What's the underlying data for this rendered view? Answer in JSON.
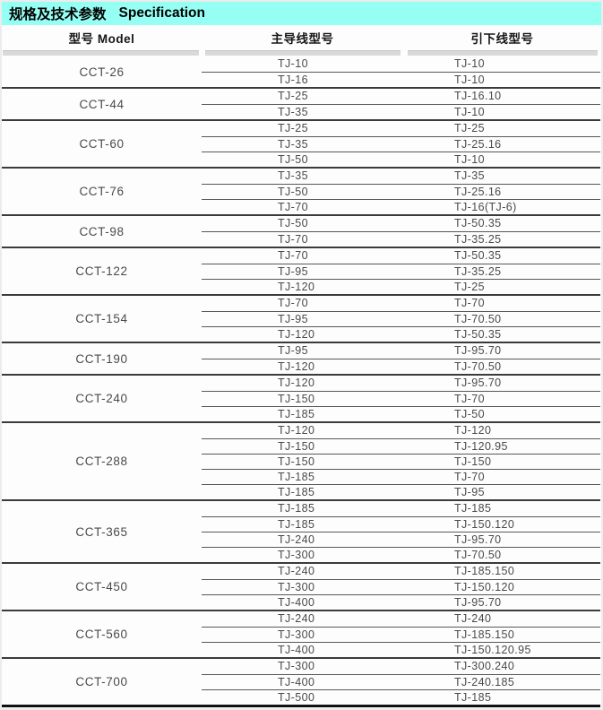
{
  "title": {
    "text_cn": "规格及技术参数",
    "text_en": "Specification",
    "bg_color": "#96fff4"
  },
  "colors": {
    "title_bg": "#96fff4",
    "band_gray": "#d9d9d9",
    "text_gray": "#4a4a4a",
    "line_dark": "#3b3b3b"
  },
  "table": {
    "columns": [
      {
        "key": "model",
        "label": "型号 Model"
      },
      {
        "key": "main",
        "label": "主导线型号"
      },
      {
        "key": "down",
        "label": "引下线型号"
      }
    ],
    "groups": [
      {
        "model": "CCT-26",
        "rows": [
          [
            "TJ-10",
            "TJ-10"
          ],
          [
            "TJ-16",
            "TJ-10"
          ]
        ]
      },
      {
        "model": "CCT-44",
        "rows": [
          [
            "TJ-25",
            "TJ-16.10"
          ],
          [
            "TJ-35",
            "TJ-10"
          ]
        ]
      },
      {
        "model": "CCT-60",
        "rows": [
          [
            "TJ-25",
            "TJ-25"
          ],
          [
            "TJ-35",
            "TJ-25.16"
          ],
          [
            "TJ-50",
            "TJ-10"
          ]
        ]
      },
      {
        "model": "CCT-76",
        "rows": [
          [
            "TJ-35",
            "TJ-35"
          ],
          [
            "TJ-50",
            "TJ-25.16"
          ],
          [
            "TJ-70",
            "TJ-16(TJ-6)"
          ]
        ]
      },
      {
        "model": "CCT-98",
        "rows": [
          [
            "TJ-50",
            "TJ-50.35"
          ],
          [
            "TJ-70",
            "TJ-35.25"
          ]
        ]
      },
      {
        "model": "CCT-122",
        "rows": [
          [
            "TJ-70",
            "TJ-50.35"
          ],
          [
            "TJ-95",
            "TJ-35.25"
          ],
          [
            "TJ-120",
            "TJ-25"
          ]
        ]
      },
      {
        "model": "CCT-154",
        "rows": [
          [
            "TJ-70",
            "TJ-70"
          ],
          [
            "TJ-95",
            "TJ-70.50"
          ],
          [
            "TJ-120",
            "TJ-50.35"
          ]
        ]
      },
      {
        "model": "CCT-190",
        "rows": [
          [
            "TJ-95",
            "TJ-95.70"
          ],
          [
            "TJ-120",
            "TJ-70.50"
          ]
        ]
      },
      {
        "model": "CCT-240",
        "rows": [
          [
            "TJ-120",
            "TJ-95.70"
          ],
          [
            "TJ-150",
            "TJ-70"
          ],
          [
            "TJ-185",
            "TJ-50"
          ]
        ]
      },
      {
        "model": "CCT-288",
        "rows": [
          [
            "TJ-120",
            "TJ-120"
          ],
          [
            "TJ-150",
            "TJ-120.95"
          ],
          [
            "TJ-150",
            "TJ-150"
          ],
          [
            "TJ-185",
            "TJ-70"
          ],
          [
            "TJ-185",
            "TJ-95"
          ]
        ]
      },
      {
        "model": "CCT-365",
        "rows": [
          [
            "TJ-185",
            "TJ-185"
          ],
          [
            "TJ-185",
            "TJ-150.120"
          ],
          [
            "TJ-240",
            "TJ-95.70"
          ],
          [
            "TJ-300",
            "TJ-70.50"
          ]
        ]
      },
      {
        "model": "CCT-450",
        "rows": [
          [
            "TJ-240",
            "TJ-185.150"
          ],
          [
            "TJ-300",
            "TJ-150.120"
          ],
          [
            "TJ-400",
            "TJ-95.70"
          ]
        ]
      },
      {
        "model": "CCT-560",
        "rows": [
          [
            "TJ-240",
            "TJ-240"
          ],
          [
            "TJ-300",
            "TJ-185.150"
          ],
          [
            "TJ-400",
            "TJ-150.120.95"
          ]
        ]
      },
      {
        "model": "CCT-700",
        "rows": [
          [
            "TJ-300",
            "TJ-300.240"
          ],
          [
            "TJ-400",
            "TJ-240.185"
          ],
          [
            "TJ-500",
            "TJ-185"
          ]
        ]
      }
    ]
  }
}
